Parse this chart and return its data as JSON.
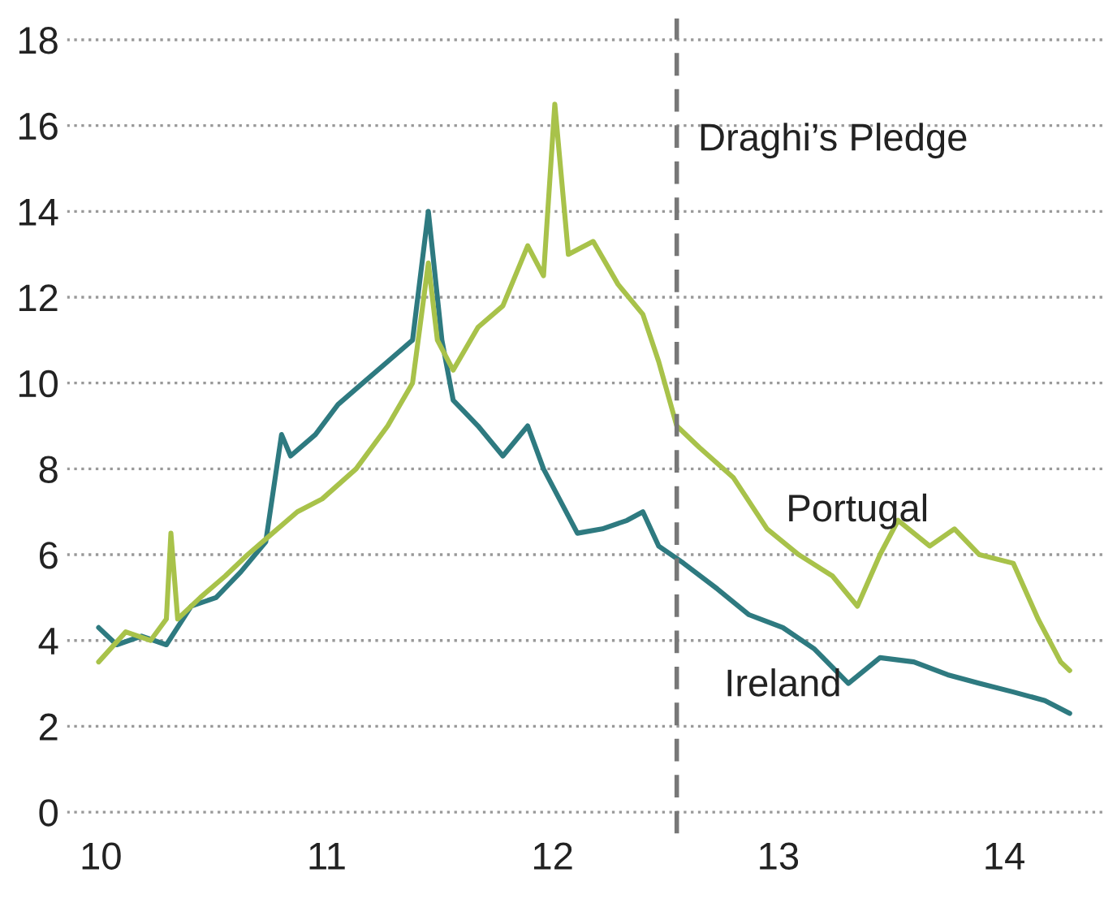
{
  "chart_data": {
    "type": "line",
    "series": [
      {
        "name": "Ireland",
        "color": "#2e7a80",
        "x": [
          9.99,
          10.07,
          10.18,
          10.29,
          10.4,
          10.51,
          10.62,
          10.73,
          10.8,
          10.84,
          10.95,
          11.05,
          11.16,
          11.27,
          11.38,
          11.45,
          11.51,
          11.56,
          11.67,
          11.78,
          11.89,
          11.96,
          12.04,
          12.11,
          12.22,
          12.33,
          12.4,
          12.47,
          12.58,
          12.73,
          12.87,
          13.02,
          13.16,
          13.31,
          13.45,
          13.6,
          13.75,
          13.89,
          14.04,
          14.18,
          14.29
        ],
        "values": [
          4.3,
          3.9,
          4.1,
          3.9,
          4.8,
          5.0,
          5.6,
          6.3,
          8.8,
          8.3,
          8.8,
          9.5,
          10.0,
          10.5,
          11.0,
          14.0,
          11.0,
          9.6,
          9.0,
          8.3,
          9.0,
          8.0,
          7.2,
          6.5,
          6.6,
          6.8,
          7.0,
          6.2,
          5.8,
          5.2,
          4.6,
          4.3,
          3.8,
          3.0,
          3.6,
          3.5,
          3.2,
          3.0,
          2.8,
          2.6,
          2.3
        ]
      },
      {
        "name": "Portugal",
        "color": "#a8c24a",
        "x": [
          9.99,
          10.11,
          10.22,
          10.29,
          10.31,
          10.34,
          10.44,
          10.55,
          10.65,
          10.76,
          10.87,
          10.98,
          11.13,
          11.27,
          11.38,
          11.45,
          11.49,
          11.56,
          11.67,
          11.78,
          11.89,
          11.96,
          12.01,
          12.07,
          12.18,
          12.29,
          12.4,
          12.47,
          12.55,
          12.65,
          12.8,
          12.95,
          13.09,
          13.24,
          13.35,
          13.45,
          13.53,
          13.67,
          13.78,
          13.89,
          14.04,
          14.15,
          14.25,
          14.29
        ],
        "values": [
          3.5,
          4.2,
          4.0,
          4.5,
          6.5,
          4.5,
          5.0,
          5.5,
          6.0,
          6.5,
          7.0,
          7.3,
          8.0,
          9.0,
          10.0,
          12.8,
          11.0,
          10.3,
          11.3,
          11.8,
          13.2,
          12.5,
          16.5,
          13.0,
          13.3,
          12.3,
          11.6,
          10.5,
          9.0,
          8.5,
          7.8,
          6.6,
          6.0,
          5.5,
          4.8,
          6.0,
          6.8,
          6.2,
          6.6,
          6.0,
          5.8,
          4.5,
          3.5,
          3.3
        ]
      }
    ],
    "xlim": [
      9.85,
      14.45
    ],
    "xticks": [
      10,
      11,
      12,
      13,
      14
    ],
    "ylim": [
      -0.5,
      18.5
    ],
    "yticks": [
      0,
      2,
      4,
      6,
      8,
      10,
      12,
      14,
      16,
      18
    ],
    "grid": "y",
    "ref_lines": [
      {
        "axis": "x",
        "value": 12.55,
        "label": "Draghi’s Pledge",
        "color": "#777777",
        "line_style": "dashed"
      }
    ]
  }
}
